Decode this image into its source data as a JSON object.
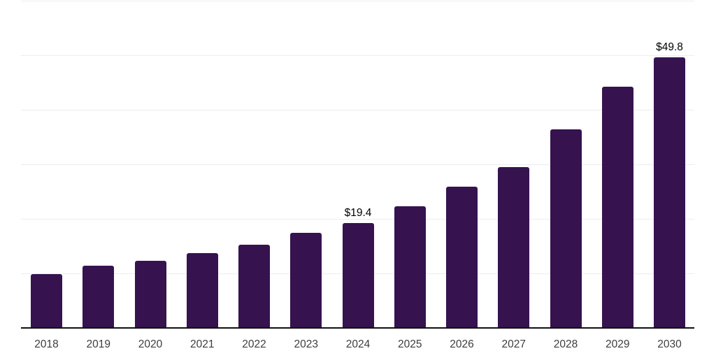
{
  "chart_data": {
    "type": "bar",
    "title": "",
    "xlabel": "",
    "ylabel": "",
    "categories": [
      "2018",
      "2019",
      "2020",
      "2021",
      "2022",
      "2023",
      "2024",
      "2025",
      "2026",
      "2027",
      "2028",
      "2029",
      "2030"
    ],
    "values": [
      10.0,
      11.5,
      12.5,
      13.9,
      15.4,
      17.6,
      19.4,
      22.4,
      26.0,
      29.6,
      36.6,
      44.3,
      49.8
    ],
    "data_labels": [
      {
        "category": "2024",
        "text": "$19.4"
      },
      {
        "category": "2030",
        "text": "$49.8"
      }
    ],
    "ylim": [
      0,
      60
    ],
    "gridline_step": 10,
    "grid": true,
    "legend": false,
    "y_tick_labels_visible": false,
    "colors": {
      "bar": "#36124F",
      "axis_line": "#111111",
      "gridline": "#ededed",
      "tick_label": "#3d3d3d",
      "data_label": "#000000",
      "background": "#ffffff"
    }
  }
}
